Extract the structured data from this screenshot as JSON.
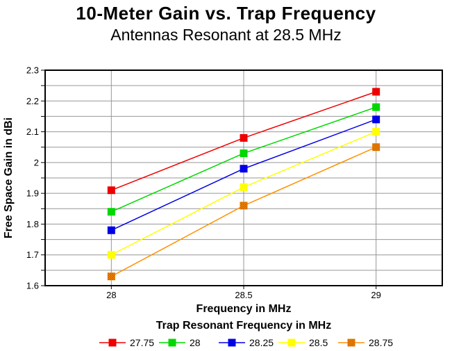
{
  "chart_data": {
    "type": "line",
    "title": "10-Meter Gain vs. Trap Frequency",
    "subtitle": "Antennas Resonant at 28.5 MHz",
    "xlabel": "Frequency in MHz",
    "ylabel": "Free Space Gain in dBi",
    "legend_title": "Trap Resonant Frequency in MHz",
    "legend_position": "bottom",
    "x": [
      28,
      28.5,
      29
    ],
    "x_tick_labels": [
      "28",
      "28.5",
      "29"
    ],
    "xlim": [
      27.75,
      29.25
    ],
    "ylim": [
      1.6,
      2.3
    ],
    "y_major_step": 0.1,
    "y_minor_step": 0.05,
    "y_tick_labels": [
      "1.6",
      "1.7",
      "1.8",
      "1.9",
      "2",
      "2.1",
      "2.2",
      "2.3"
    ],
    "grid": true,
    "marker": "square",
    "series": [
      {
        "name": "27.75",
        "color": "#EE0000",
        "hatch": false,
        "values": [
          1.91,
          2.08,
          2.23
        ]
      },
      {
        "name": "28",
        "color": "#00D800",
        "hatch": false,
        "values": [
          1.84,
          2.03,
          2.18
        ]
      },
      {
        "name": "28.25",
        "color": "#0000E6",
        "hatch": false,
        "values": [
          1.78,
          1.98,
          2.14
        ]
      },
      {
        "name": "28.5",
        "color": "#FFFF00",
        "hatch": false,
        "values": [
          1.7,
          1.92,
          2.1
        ]
      },
      {
        "name": "28.75",
        "color": "#FF9100",
        "hatch": true,
        "hatch_color": "#CC6600",
        "values": [
          1.63,
          1.86,
          2.05
        ]
      }
    ],
    "colors": {
      "grid": "#969696",
      "frame": "#000000",
      "background": "#FFFFFF"
    }
  }
}
